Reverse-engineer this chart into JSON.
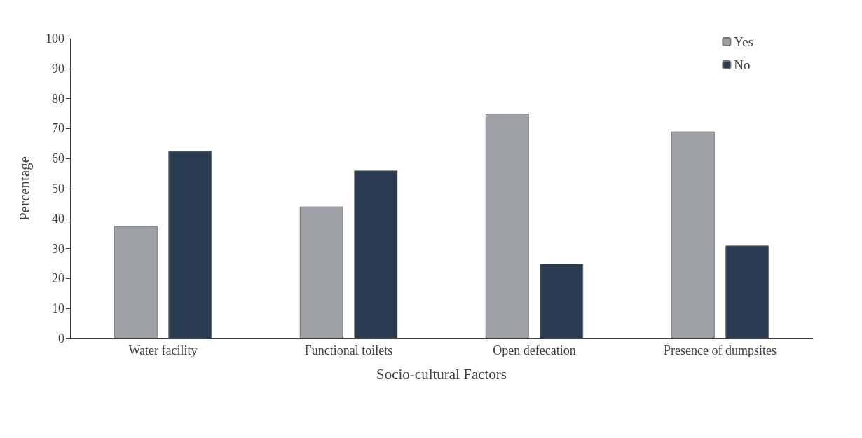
{
  "chart_data": {
    "type": "bar",
    "xlabel": "Socio-cultural Factors",
    "ylabel": "Percentage",
    "categories": [
      "Water facility",
      "Functional toilets",
      "Open defecation",
      "Presence of dumpsites"
    ],
    "series": [
      {
        "name": "Yes",
        "color": "#9ea1a6",
        "values": [
          37.5,
          44,
          75,
          69
        ]
      },
      {
        "name": "No",
        "color": "#2a3a50",
        "values": [
          62.5,
          56,
          25,
          31
        ]
      }
    ],
    "ylim": [
      0,
      100
    ],
    "yticks": [
      0,
      10,
      20,
      30,
      40,
      50,
      60,
      70,
      80,
      90,
      100
    ],
    "grid": false,
    "legend": "top right"
  }
}
